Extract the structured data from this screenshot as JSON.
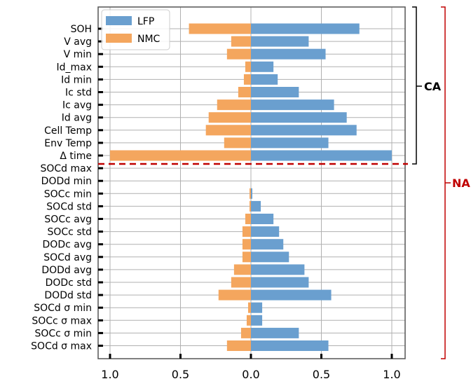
{
  "chart_data": {
    "type": "bar",
    "orientation": "horizontal",
    "categories": [
      "SOH",
      "V avg",
      "V min",
      "Id_max",
      "Id min",
      "Ic std",
      "Ic avg",
      "Id avg",
      "Cell Temp",
      "Env Temp",
      "Δ time",
      "SOCd max",
      "DODd min",
      "SOCc min",
      "SOCd std",
      "SOCc avg",
      "SOCc std",
      "DODc avg",
      "SOCd avg",
      "DODd avg",
      "DODc std",
      "DODd std",
      "SOCd σ min",
      "SOCc σ max",
      "SOCc σ min",
      "SOCd σ max"
    ],
    "series": [
      {
        "name": "LFP",
        "color": "#6a9fcf",
        "values": [
          0.77,
          0.41,
          0.53,
          0.16,
          0.19,
          0.34,
          0.59,
          0.68,
          0.75,
          0.55,
          1.0,
          0.0,
          0.0,
          0.01,
          0.07,
          0.16,
          0.2,
          0.23,
          0.27,
          0.38,
          0.41,
          0.57,
          0.08,
          0.08,
          0.34,
          0.55
        ]
      },
      {
        "name": "NMC",
        "color": "#f4a65e",
        "values": [
          0.44,
          0.14,
          0.17,
          0.04,
          0.05,
          0.09,
          0.24,
          0.3,
          0.32,
          0.19,
          1.0,
          0.0,
          0.0,
          0.01,
          0.01,
          0.04,
          0.06,
          0.06,
          0.06,
          0.12,
          0.14,
          0.23,
          0.02,
          0.03,
          0.07,
          0.17
        ]
      }
    ],
    "xticks": [
      "1.0",
      "0.5",
      "0.0",
      "0.5",
      "1.0"
    ],
    "xlim": [
      -1.0,
      1.0
    ],
    "grid": true,
    "legend": {
      "position": "top-left",
      "entries": [
        "LFP",
        "NMC"
      ]
    },
    "groups": [
      {
        "label": "CA",
        "from": "SOH",
        "to": "Δ time",
        "color": "#000000"
      },
      {
        "label": "NA",
        "from": "SOH",
        "to": "SOCd σ max",
        "color": "#c00000"
      }
    ],
    "separator": {
      "after": "Δ time",
      "color": "#c00000",
      "style": "dashed"
    }
  }
}
